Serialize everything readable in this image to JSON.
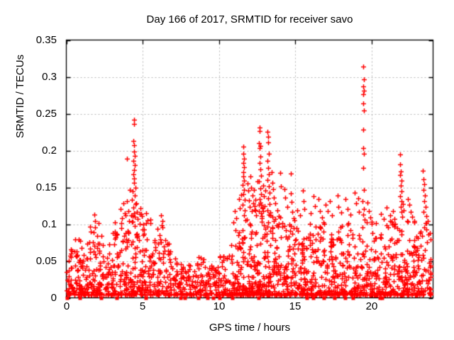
{
  "chart_data": {
    "type": "scatter",
    "title": "Day 166 of 2017, SRMTID for receiver savo",
    "xlabel": "GPS time / hours",
    "ylabel": "SRMTID / TECUs",
    "xlim": [
      0,
      24.02
    ],
    "ylim": [
      0,
      0.35
    ],
    "xticks": [
      0,
      5,
      10,
      15,
      20
    ],
    "xtick_labels": [
      "0",
      "5",
      "10",
      "15",
      "20"
    ],
    "yticks": [
      0,
      0.05,
      0.1,
      0.15,
      0.2,
      0.25,
      0.3,
      0.35
    ],
    "ytick_labels": [
      "0",
      "0.05",
      "0.1",
      "0.15",
      "0.2",
      "0.25",
      "0.3",
      "0.35"
    ],
    "grid": true,
    "legend": "none",
    "point_color": "#ff0000",
    "grid_color": "#b4b4b4",
    "axis_color": "#000000",
    "series": [
      {
        "name": "srmtid-values",
        "marker": "plus",
        "points": [
          [
            1.85,
            0.113
          ],
          [
            1.9,
            0.104
          ],
          [
            2.1,
            0.101
          ],
          [
            3.2,
            0.102
          ],
          [
            3.55,
            0.121
          ],
          [
            3.65,
            0.108
          ],
          [
            3.75,
            0.128
          ],
          [
            3.85,
            0.115
          ],
          [
            3.95,
            0.189
          ],
          [
            3.97,
            0.131
          ],
          [
            4.05,
            0.118
          ],
          [
            4.15,
            0.147
          ],
          [
            4.42,
            0.242
          ],
          [
            4.46,
            0.236
          ],
          [
            4.4,
            0.213
          ],
          [
            4.45,
            0.207
          ],
          [
            4.43,
            0.199
          ],
          [
            4.47,
            0.193
          ],
          [
            4.41,
            0.186
          ],
          [
            4.5,
            0.18
          ],
          [
            4.44,
            0.174
          ],
          [
            4.38,
            0.168
          ],
          [
            4.46,
            0.162
          ],
          [
            4.42,
            0.156
          ],
          [
            4.52,
            0.15
          ],
          [
            4.36,
            0.145
          ],
          [
            4.48,
            0.139
          ],
          [
            4.3,
            0.133
          ],
          [
            4.56,
            0.128
          ],
          [
            4.4,
            0.123
          ],
          [
            4.6,
            0.117
          ],
          [
            4.25,
            0.112
          ],
          [
            4.65,
            0.107
          ],
          [
            4.33,
            0.103
          ],
          [
            4.85,
            0.122
          ],
          [
            4.95,
            0.111
          ],
          [
            5.25,
            0.115
          ],
          [
            5.3,
            0.105
          ],
          [
            5.5,
            0.101
          ],
          [
            6.2,
            0.112
          ],
          [
            6.3,
            0.104
          ],
          [
            10.95,
            0.102
          ],
          [
            11.05,
            0.118
          ],
          [
            11.15,
            0.108
          ],
          [
            11.3,
            0.134
          ],
          [
            11.35,
            0.122
          ],
          [
            11.45,
            0.14
          ],
          [
            11.58,
            0.205
          ],
          [
            11.6,
            0.196
          ],
          [
            11.62,
            0.189
          ],
          [
            11.57,
            0.183
          ],
          [
            11.63,
            0.177
          ],
          [
            11.59,
            0.171
          ],
          [
            11.61,
            0.165
          ],
          [
            11.65,
            0.159
          ],
          [
            11.56,
            0.153
          ],
          [
            11.64,
            0.147
          ],
          [
            11.6,
            0.141
          ],
          [
            11.68,
            0.133
          ],
          [
            11.55,
            0.126
          ],
          [
            11.7,
            0.119
          ],
          [
            11.66,
            0.112
          ],
          [
            11.72,
            0.105
          ],
          [
            11.85,
            0.155
          ],
          [
            11.9,
            0.146
          ],
          [
            11.95,
            0.132
          ],
          [
            12.0,
            0.124
          ],
          [
            12.05,
            0.165
          ],
          [
            12.1,
            0.15
          ],
          [
            12.15,
            0.118
          ],
          [
            12.2,
            0.139
          ],
          [
            12.25,
            0.128
          ],
          [
            12.3,
            0.147
          ],
          [
            12.35,
            0.12
          ],
          [
            12.4,
            0.133
          ],
          [
            12.45,
            0.112
          ],
          [
            12.5,
            0.158
          ],
          [
            12.65,
            0.231
          ],
          [
            12.68,
            0.226
          ],
          [
            12.63,
            0.21
          ],
          [
            12.7,
            0.206
          ],
          [
            12.66,
            0.203
          ],
          [
            12.72,
            0.192
          ],
          [
            12.64,
            0.183
          ],
          [
            12.69,
            0.175
          ],
          [
            12.75,
            0.166
          ],
          [
            12.62,
            0.158
          ],
          [
            12.71,
            0.149
          ],
          [
            12.77,
            0.141
          ],
          [
            12.67,
            0.134
          ],
          [
            12.74,
            0.126
          ],
          [
            12.6,
            0.118
          ],
          [
            12.78,
            0.111
          ],
          [
            12.9,
            0.152
          ],
          [
            12.95,
            0.138
          ],
          [
            13.0,
            0.125
          ],
          [
            13.05,
            0.146
          ],
          [
            13.18,
            0.225
          ],
          [
            13.22,
            0.219
          ],
          [
            13.2,
            0.211
          ],
          [
            13.25,
            0.196
          ],
          [
            13.17,
            0.186
          ],
          [
            13.24,
            0.176
          ],
          [
            13.28,
            0.168
          ],
          [
            13.16,
            0.16
          ],
          [
            13.26,
            0.151
          ],
          [
            13.3,
            0.143
          ],
          [
            13.21,
            0.135
          ],
          [
            13.32,
            0.127
          ],
          [
            13.19,
            0.119
          ],
          [
            13.34,
            0.112
          ],
          [
            13.45,
            0.171
          ],
          [
            13.5,
            0.156
          ],
          [
            13.55,
            0.148
          ],
          [
            13.6,
            0.136
          ],
          [
            13.7,
            0.128
          ],
          [
            13.8,
            0.119
          ],
          [
            13.9,
            0.111
          ],
          [
            14.0,
            0.17
          ],
          [
            14.05,
            0.151
          ],
          [
            14.3,
            0.148
          ],
          [
            14.35,
            0.136
          ],
          [
            14.45,
            0.124
          ],
          [
            14.7,
            0.169
          ],
          [
            14.72,
            0.142
          ],
          [
            14.75,
            0.13
          ],
          [
            14.8,
            0.117
          ],
          [
            14.9,
            0.108
          ],
          [
            15.1,
            0.119
          ],
          [
            15.3,
            0.112
          ],
          [
            15.5,
            0.146
          ],
          [
            15.55,
            0.131
          ],
          [
            15.6,
            0.121
          ],
          [
            16.0,
            0.115
          ],
          [
            16.2,
            0.138
          ],
          [
            16.3,
            0.125
          ],
          [
            16.5,
            0.134
          ],
          [
            16.6,
            0.118
          ],
          [
            16.75,
            0.109
          ],
          [
            17.0,
            0.126
          ],
          [
            17.1,
            0.118
          ],
          [
            17.25,
            0.131
          ],
          [
            17.4,
            0.112
          ],
          [
            17.75,
            0.139
          ],
          [
            17.8,
            0.124
          ],
          [
            18.0,
            0.116
          ],
          [
            18.3,
            0.134
          ],
          [
            18.4,
            0.121
          ],
          [
            18.6,
            0.113
          ],
          [
            18.9,
            0.143
          ],
          [
            19.0,
            0.128
          ],
          [
            19.1,
            0.135
          ],
          [
            19.15,
            0.117
          ],
          [
            19.45,
            0.314
          ],
          [
            19.47,
            0.297
          ],
          [
            19.44,
            0.287
          ],
          [
            19.49,
            0.281
          ],
          [
            19.46,
            0.276
          ],
          [
            19.43,
            0.264
          ],
          [
            19.48,
            0.254
          ],
          [
            19.45,
            0.228
          ],
          [
            19.46,
            0.203
          ],
          [
            19.5,
            0.196
          ],
          [
            19.44,
            0.176
          ],
          [
            19.47,
            0.147
          ],
          [
            19.42,
            0.131
          ],
          [
            19.49,
            0.121
          ],
          [
            19.46,
            0.113
          ],
          [
            19.52,
            0.106
          ],
          [
            19.7,
            0.129
          ],
          [
            19.8,
            0.118
          ],
          [
            19.9,
            0.109
          ],
          [
            20.3,
            0.101
          ],
          [
            20.6,
            0.114
          ],
          [
            20.8,
            0.107
          ],
          [
            21.0,
            0.123
          ],
          [
            21.2,
            0.112
          ],
          [
            21.4,
            0.118
          ],
          [
            21.85,
            0.195
          ],
          [
            21.88,
            0.181
          ],
          [
            21.92,
            0.172
          ],
          [
            21.86,
            0.167
          ],
          [
            21.95,
            0.159
          ],
          [
            21.89,
            0.152
          ],
          [
            21.93,
            0.145
          ],
          [
            21.87,
            0.138
          ],
          [
            21.96,
            0.131
          ],
          [
            21.9,
            0.124
          ],
          [
            21.94,
            0.117
          ],
          [
            21.98,
            0.11
          ],
          [
            22.05,
            0.127
          ],
          [
            22.1,
            0.119
          ],
          [
            22.35,
            0.134
          ],
          [
            22.45,
            0.126
          ],
          [
            22.55,
            0.117
          ],
          [
            22.65,
            0.11
          ],
          [
            22.8,
            0.104
          ],
          [
            23.35,
            0.173
          ],
          [
            23.4,
            0.161
          ],
          [
            23.45,
            0.154
          ],
          [
            23.38,
            0.147
          ],
          [
            23.5,
            0.139
          ],
          [
            23.43,
            0.131
          ],
          [
            23.55,
            0.124
          ],
          [
            23.37,
            0.117
          ],
          [
            23.6,
            0.111
          ],
          [
            23.65,
            0.104
          ]
        ],
        "band_ymin": 0.004,
        "band_skew": 2.2,
        "band_bin_width": 0.5,
        "bands": [
          [
            0.0,
            38,
            0.066
          ],
          [
            0.5,
            42,
            0.08
          ],
          [
            1.0,
            38,
            0.076
          ],
          [
            1.5,
            40,
            0.098
          ],
          [
            2.0,
            36,
            0.086
          ],
          [
            2.5,
            34,
            0.076
          ],
          [
            3.0,
            36,
            0.094
          ],
          [
            3.5,
            40,
            0.112
          ],
          [
            4.0,
            44,
            0.118
          ],
          [
            4.5,
            44,
            0.128
          ],
          [
            5.0,
            38,
            0.106
          ],
          [
            5.5,
            34,
            0.094
          ],
          [
            6.0,
            36,
            0.1
          ],
          [
            6.5,
            32,
            0.076
          ],
          [
            7.0,
            30,
            0.056
          ],
          [
            7.5,
            28,
            0.046
          ],
          [
            8.0,
            28,
            0.05
          ],
          [
            8.5,
            30,
            0.056
          ],
          [
            9.0,
            30,
            0.05
          ],
          [
            9.5,
            28,
            0.046
          ],
          [
            10.0,
            30,
            0.062
          ],
          [
            10.5,
            34,
            0.082
          ],
          [
            11.0,
            42,
            0.1
          ],
          [
            11.5,
            50,
            0.118
          ],
          [
            12.0,
            54,
            0.126
          ],
          [
            12.5,
            54,
            0.13
          ],
          [
            13.0,
            50,
            0.122
          ],
          [
            13.5,
            46,
            0.112
          ],
          [
            14.0,
            42,
            0.104
          ],
          [
            14.5,
            40,
            0.106
          ],
          [
            15.0,
            38,
            0.098
          ],
          [
            15.5,
            38,
            0.102
          ],
          [
            16.0,
            40,
            0.1
          ],
          [
            16.5,
            38,
            0.104
          ],
          [
            17.0,
            38,
            0.106
          ],
          [
            17.5,
            36,
            0.1
          ],
          [
            18.0,
            38,
            0.106
          ],
          [
            18.5,
            36,
            0.106
          ],
          [
            19.0,
            34,
            0.098
          ],
          [
            19.5,
            36,
            0.104
          ],
          [
            20.0,
            36,
            0.088
          ],
          [
            20.5,
            38,
            0.1
          ],
          [
            21.0,
            40,
            0.108
          ],
          [
            21.5,
            42,
            0.116
          ],
          [
            22.0,
            42,
            0.112
          ],
          [
            22.5,
            40,
            0.106
          ],
          [
            23.0,
            36,
            0.096
          ],
          [
            23.5,
            30,
            0.11
          ]
        ]
      },
      {
        "name": "zero-flags",
        "marker": "filled-square",
        "y": 0,
        "x": [
          0.07,
          0.91,
          2.3,
          3.33,
          5.23,
          7.51,
          7.79,
          8.67,
          9.28,
          9.65,
          10.07,
          10.91,
          12.63,
          15.79,
          16.21,
          16.91,
          17.6,
          18.3,
          18.81,
          20.55,
          20.72
        ]
      }
    ]
  }
}
